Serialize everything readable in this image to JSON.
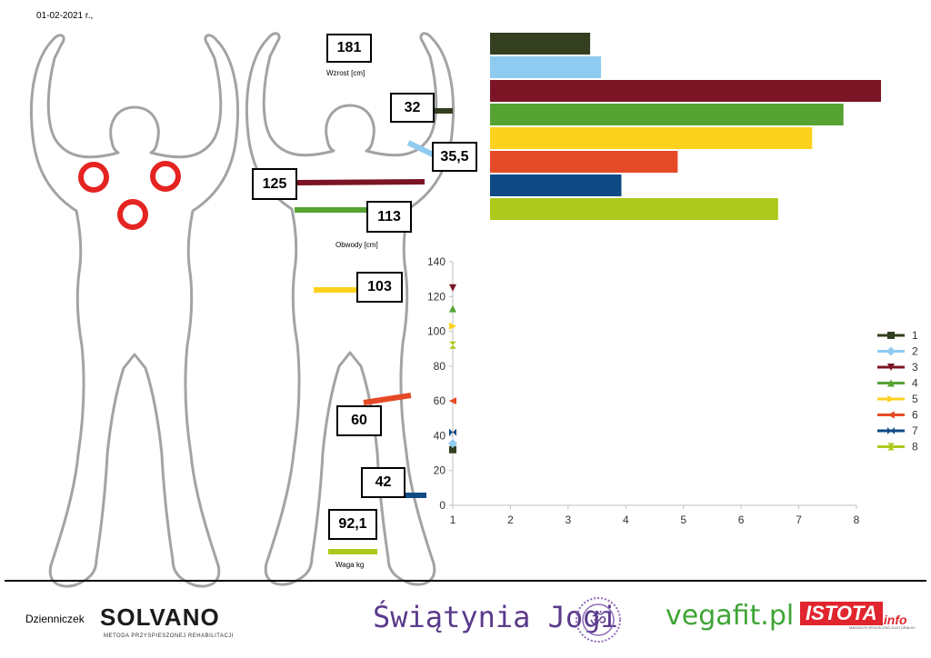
{
  "date": "01-02-2021 r.,",
  "measurements": {
    "wzrost": {
      "value": "181",
      "label": "Wzrost [cm]"
    },
    "m1": "32",
    "m2": "35,5",
    "m3": "125",
    "m4": "113",
    "obwody_label": "Obwody [cm]",
    "m5": "103",
    "m6": "60",
    "m7": "42",
    "waga": {
      "value": "92,1",
      "label": "Waga kg"
    }
  },
  "colors": {
    "s1": "#333f1f",
    "s2": "#8fcbf0",
    "s3": "#7b1424",
    "s4": "#56a233",
    "s5": "#fdd21f",
    "s6": "#e54a26",
    "s7": "#0f4a85",
    "s8": "#adc91c",
    "marker": "#e52421",
    "outline": "#a3a3a3"
  },
  "chart_data": [
    {
      "type": "bar",
      "orientation": "horizontal",
      "values": [
        32,
        35.5,
        125,
        113,
        103,
        60,
        42,
        92.1
      ],
      "note_axes_hidden": true
    },
    {
      "type": "scatter",
      "x_ticks": [
        "1",
        "2",
        "3",
        "4",
        "5",
        "6",
        "7",
        "8"
      ],
      "y_ticks": [
        "0",
        "20",
        "40",
        "60",
        "80",
        "100",
        "120",
        "140"
      ],
      "xlim": [
        1,
        8
      ],
      "ylim": [
        0,
        140
      ],
      "grid": false,
      "legend_position": "right",
      "series": [
        {
          "name": "1",
          "x": 1,
          "y": 32,
          "marker": "square"
        },
        {
          "name": "2",
          "x": 1,
          "y": 35.5,
          "marker": "diamond"
        },
        {
          "name": "3",
          "x": 1,
          "y": 125,
          "marker": "triangle-down"
        },
        {
          "name": "4",
          "x": 1,
          "y": 113,
          "marker": "triangle-up"
        },
        {
          "name": "5",
          "x": 1,
          "y": 103,
          "marker": "triangle-right"
        },
        {
          "name": "6",
          "x": 1,
          "y": 60,
          "marker": "triangle-left"
        },
        {
          "name": "7",
          "x": 1,
          "y": 42,
          "marker": "bowtie"
        },
        {
          "name": "8",
          "x": 1,
          "y": 92.1,
          "marker": "hourglass"
        }
      ]
    }
  ],
  "footer": {
    "label": "Dzienniczek",
    "solvano": "SOLVANO",
    "solvano_sub": "METODA PRZYSPIESZONEJ REHABILITACJI",
    "joga": "Świątynia Jogi",
    "vegafit": "vegafit.pl",
    "istota": "ISTOTA",
    "istota_info": ".info",
    "istota_sub": "MAGAZYN SPOŁECZNO-KULTURALNY"
  }
}
